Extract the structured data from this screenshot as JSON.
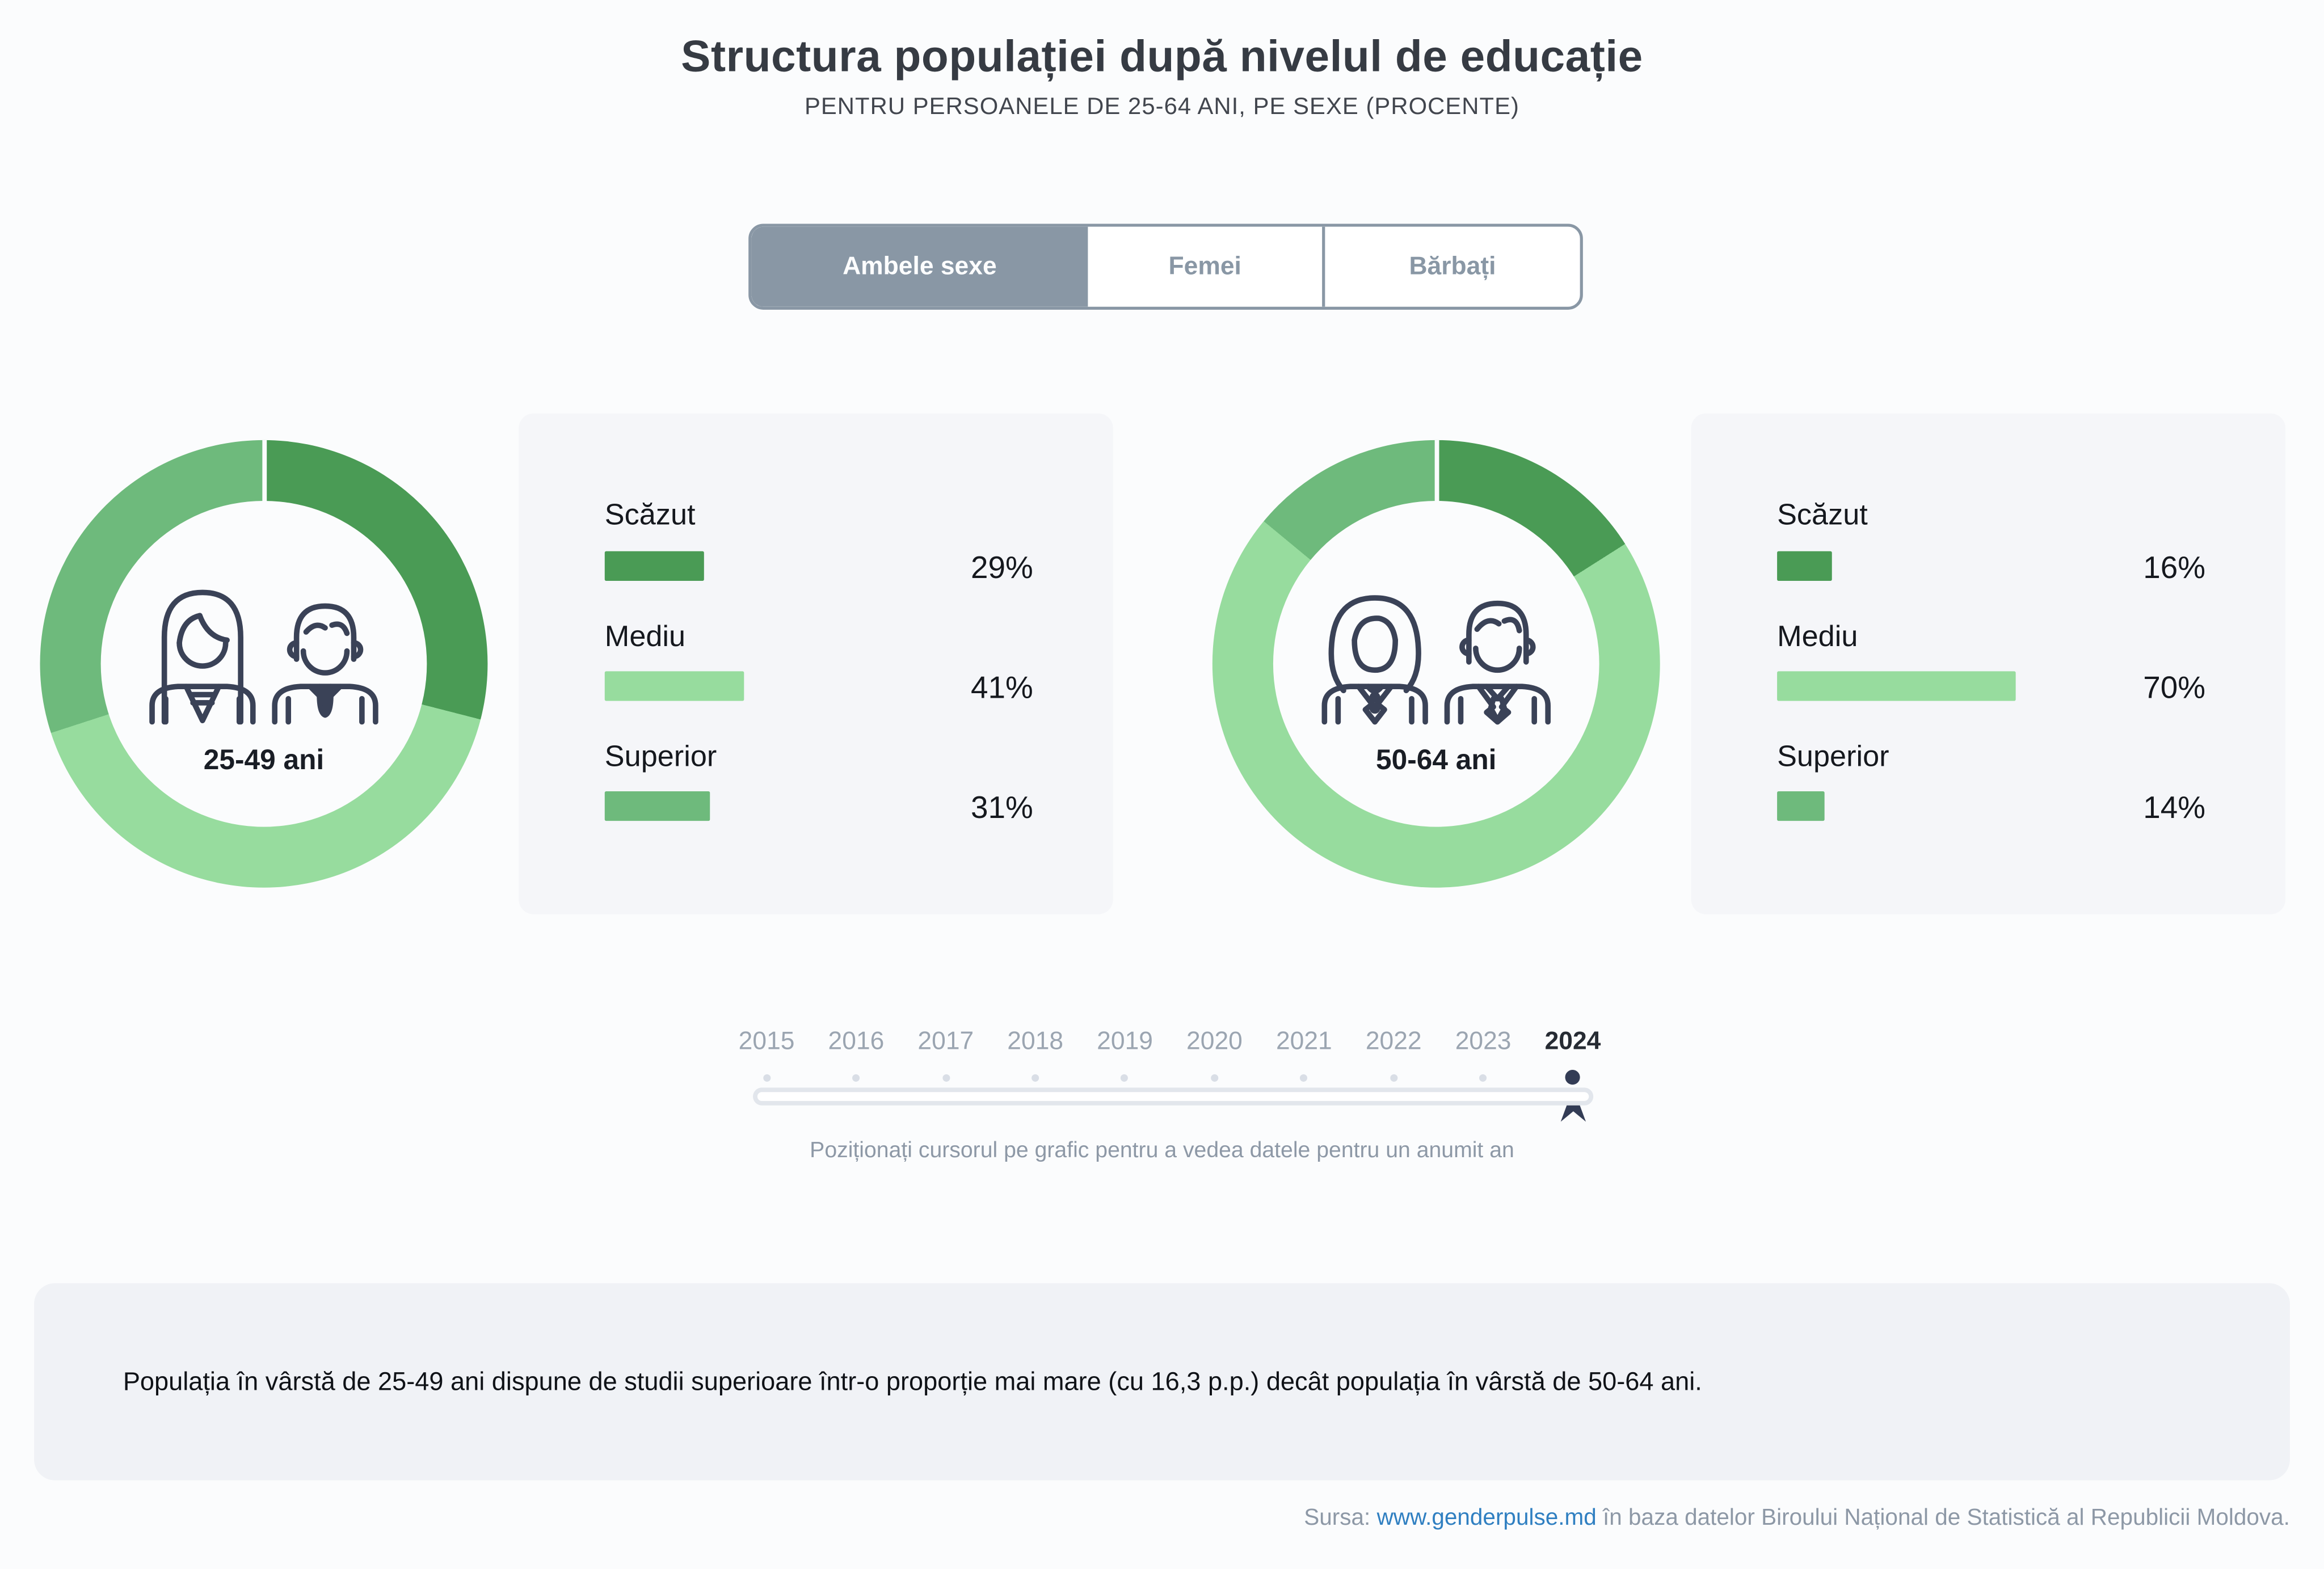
{
  "header": {
    "title": "Structura populației după nivelul de educație",
    "subtitle": "PENTRU PERSOANELE DE 25-64 ANI, PE SEXE (PROCENTE)"
  },
  "tabs": [
    {
      "label": "Ambele sexe",
      "active": true
    },
    {
      "label": "Femei",
      "active": false
    },
    {
      "label": "Bărbați",
      "active": false
    }
  ],
  "chart_data": [
    {
      "type": "pie",
      "title": "25-49 ani",
      "categories": [
        "Scăzut",
        "Mediu",
        "Superior"
      ],
      "values": [
        29,
        41,
        31
      ],
      "labels": [
        "29%",
        "41%",
        "31%"
      ],
      "unit": "percent",
      "legend_position": "right"
    },
    {
      "type": "pie",
      "title": "50-64 ani",
      "categories": [
        "Scăzut",
        "Mediu",
        "Superior"
      ],
      "values": [
        16,
        70,
        14
      ],
      "labels": [
        "16%",
        "70%",
        "14%"
      ],
      "unit": "percent",
      "legend_position": "right"
    }
  ],
  "colors": {
    "scazut": "#4a9b55",
    "mediu": "#97dc9e",
    "superior": "#6eba7c",
    "tab_accent": "#8997a5",
    "marker": "#333c55",
    "link": "#2f7fc1"
  },
  "slider": {
    "years": [
      "2015",
      "2016",
      "2017",
      "2018",
      "2019",
      "2020",
      "2021",
      "2022",
      "2023",
      "2024"
    ],
    "selected": "2024",
    "hint": "Poziționați cursorul pe grafic pentru a vedea datele pentru un anumit an"
  },
  "footer": {
    "note": "Populația în vârstă de 25-49 ani dispune de studii superioare într-o proporție mai mare (cu 16,3 p.p.) decât populația în vârstă de 50-64 ani."
  },
  "source": {
    "prefix": "Sursa:",
    "link_text": "www.genderpulse.md",
    "suffix": "în baza datelor Biroului Național de Statistică al Republicii Moldova."
  }
}
